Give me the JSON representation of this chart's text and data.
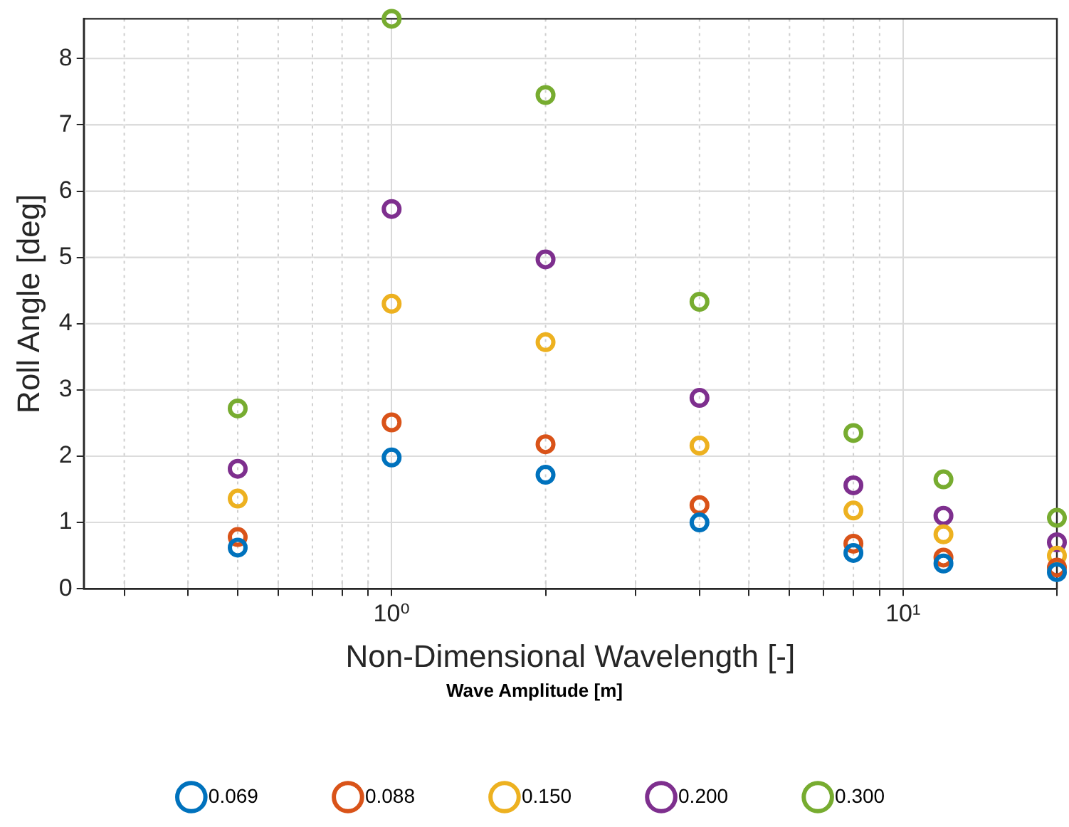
{
  "chart_data": {
    "type": "scatter",
    "xlabel": "Non-Dimensional Wavelength [-]",
    "ylabel": "Roll Angle [deg]",
    "legend_title": "Wave Amplitude [m]",
    "legend": "bottom",
    "marker": "circle",
    "grid": true,
    "log": "x",
    "x": [
      0.5,
      1,
      2,
      4,
      8,
      12,
      20
    ],
    "xlim": [
      0.25,
      20
    ],
    "ylim": [
      0,
      8.6
    ],
    "xticks": [
      {
        "value": 0.3,
        "label": null
      },
      {
        "value": 0.4,
        "label": null
      },
      {
        "value": 0.5,
        "label": null
      },
      {
        "value": 0.6,
        "label": null
      },
      {
        "value": 0.7,
        "label": null
      },
      {
        "value": 0.8,
        "label": null
      },
      {
        "value": 0.9,
        "label": null
      },
      {
        "value": 1,
        "label": "10⁰"
      },
      {
        "value": 2,
        "label": null
      },
      {
        "value": 3,
        "label": null
      },
      {
        "value": 4,
        "label": null
      },
      {
        "value": 5,
        "label": null
      },
      {
        "value": 6,
        "label": null
      },
      {
        "value": 7,
        "label": null
      },
      {
        "value": 8,
        "label": null
      },
      {
        "value": 9,
        "label": null
      },
      {
        "value": 10,
        "label": "10¹"
      },
      {
        "value": 20,
        "label": null
      }
    ],
    "yticks": [
      0,
      1,
      2,
      3,
      4,
      5,
      6,
      7,
      8
    ],
    "series": [
      {
        "name": "0.069",
        "color": "#0072bd",
        "values": [
          0.62,
          1.98,
          1.72,
          1.0,
          0.54,
          0.38,
          0.25
        ]
      },
      {
        "name": "0.088",
        "color": "#d95319",
        "values": [
          0.78,
          2.51,
          2.18,
          1.26,
          0.68,
          0.47,
          0.32
        ]
      },
      {
        "name": "0.150",
        "color": "#edb120",
        "values": [
          1.36,
          4.3,
          3.72,
          2.16,
          1.18,
          0.82,
          0.5
        ]
      },
      {
        "name": "0.200",
        "color": "#7e2f8e",
        "values": [
          1.81,
          5.73,
          4.97,
          2.88,
          1.56,
          1.1,
          0.7
        ]
      },
      {
        "name": "0.300",
        "color": "#77ac30",
        "values": [
          2.72,
          8.6,
          7.45,
          4.33,
          2.35,
          1.65,
          1.07
        ]
      }
    ]
  }
}
